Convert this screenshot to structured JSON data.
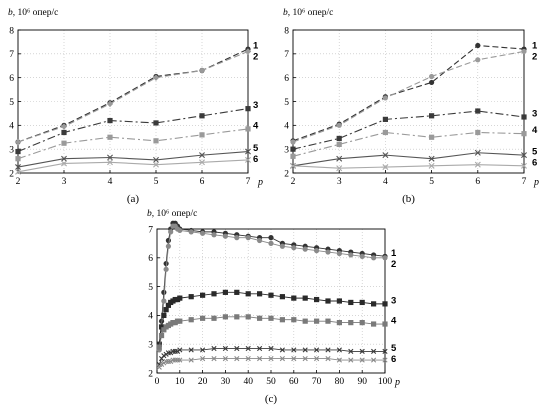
{
  "chart_data": [
    {
      "id": "a",
      "type": "line",
      "panel_label": "(a)",
      "ylabel_var": "b",
      "ylabel_unit": ", 10⁶ опер/с",
      "xlabel": "p",
      "x": [
        2,
        3,
        4,
        5,
        6,
        7
      ],
      "xlim": [
        2,
        7
      ],
      "ylim": [
        2,
        8
      ],
      "xticks": [
        2,
        3,
        4,
        5,
        6,
        7
      ],
      "yticks": [
        2,
        3,
        4,
        5,
        6,
        7,
        8
      ],
      "grid": true,
      "series": [
        {
          "label": "1",
          "values": [
            3.3,
            4.0,
            4.95,
            6.05,
            6.3,
            7.2
          ],
          "color": "#333333",
          "marker": "circle",
          "dash": "6,3"
        },
        {
          "label": "2",
          "values": [
            3.3,
            3.95,
            4.9,
            6.0,
            6.3,
            7.1
          ],
          "color": "#9a9a9a",
          "marker": "diamond",
          "dash": "6,3"
        },
        {
          "label": "3",
          "values": [
            2.9,
            3.7,
            4.2,
            4.1,
            4.4,
            4.7
          ],
          "color": "#3a3a3a",
          "marker": "square",
          "dash": "8,3,2,3"
        },
        {
          "label": "4",
          "values": [
            2.6,
            3.25,
            3.5,
            3.35,
            3.6,
            3.85
          ],
          "color": "#9a9a9a",
          "marker": "square",
          "dash": "8,3,2,3"
        },
        {
          "label": "5",
          "values": [
            2.25,
            2.6,
            2.65,
            2.55,
            2.75,
            2.9
          ],
          "color": "#555555",
          "marker": "x",
          "dash": ""
        },
        {
          "label": "6",
          "values": [
            2.05,
            2.4,
            2.45,
            2.35,
            2.45,
            2.55
          ],
          "color": "#aaaaaa",
          "marker": "x",
          "dash": ""
        }
      ]
    },
    {
      "id": "b",
      "type": "line",
      "panel_label": "(b)",
      "ylabel_var": "b",
      "ylabel_unit": ", 10⁶ опер/с",
      "xlabel": "p",
      "x": [
        2,
        3,
        4,
        5,
        6,
        7
      ],
      "xlim": [
        2,
        7
      ],
      "ylim": [
        2,
        8
      ],
      "xticks": [
        2,
        3,
        4,
        5,
        6,
        7
      ],
      "yticks": [
        2,
        3,
        4,
        5,
        6,
        7,
        8
      ],
      "grid": true,
      "series": [
        {
          "label": "1",
          "values": [
            3.35,
            4.05,
            5.2,
            5.8,
            7.35,
            7.2
          ],
          "color": "#333333",
          "marker": "circle",
          "dash": "6,3"
        },
        {
          "label": "2",
          "values": [
            3.3,
            4.0,
            5.15,
            6.05,
            6.75,
            7.1
          ],
          "color": "#9a9a9a",
          "marker": "circle",
          "dash": "6,3"
        },
        {
          "label": "3",
          "values": [
            3.0,
            3.45,
            4.25,
            4.4,
            4.6,
            4.35
          ],
          "color": "#3a3a3a",
          "marker": "square",
          "dash": "8,3,2,3"
        },
        {
          "label": "4",
          "values": [
            2.7,
            3.2,
            3.7,
            3.5,
            3.7,
            3.65
          ],
          "color": "#9a9a9a",
          "marker": "square",
          "dash": "8,3,2,3"
        },
        {
          "label": "5",
          "values": [
            2.3,
            2.6,
            2.75,
            2.6,
            2.85,
            2.75
          ],
          "color": "#555555",
          "marker": "x",
          "dash": ""
        },
        {
          "label": "6",
          "values": [
            2.3,
            2.2,
            2.25,
            2.3,
            2.35,
            2.3
          ],
          "color": "#aaaaaa",
          "marker": "x",
          "dash": ""
        }
      ]
    },
    {
      "id": "c",
      "type": "scatter",
      "panel_label": "(c)",
      "ylabel_var": "b",
      "ylabel_unit": ", 10⁶ опер/с",
      "xlabel": "p",
      "xlim": [
        0,
        100
      ],
      "ylim": [
        2,
        7
      ],
      "xticks": [
        0,
        10,
        20,
        30,
        40,
        50,
        60,
        70,
        80,
        90,
        100
      ],
      "yticks": [
        2,
        3,
        4,
        5,
        6,
        7
      ],
      "grid": true,
      "series": [
        {
          "label": "1",
          "color": "#333333",
          "marker": "circle",
          "x": [
            1,
            2,
            3,
            4,
            5,
            6,
            7,
            8,
            9,
            10,
            15,
            20,
            25,
            30,
            35,
            40,
            45,
            50,
            55,
            60,
            65,
            70,
            75,
            80,
            85,
            90,
            95,
            100
          ],
          "y": [
            3.0,
            3.8,
            4.8,
            5.8,
            6.6,
            7.0,
            7.2,
            7.2,
            7.1,
            7.0,
            6.95,
            6.9,
            6.9,
            6.85,
            6.8,
            6.75,
            6.7,
            6.7,
            6.5,
            6.45,
            6.4,
            6.35,
            6.3,
            6.25,
            6.2,
            6.15,
            6.1,
            6.05
          ]
        },
        {
          "label": "2",
          "color": "#8a8a8a",
          "marker": "circle",
          "x": [
            1,
            2,
            3,
            4,
            5,
            6,
            7,
            8,
            9,
            10,
            15,
            20,
            25,
            30,
            35,
            40,
            45,
            50,
            55,
            60,
            65,
            70,
            75,
            80,
            85,
            90,
            95,
            100
          ],
          "y": [
            2.8,
            3.6,
            4.5,
            5.6,
            6.4,
            6.9,
            7.1,
            7.1,
            7.0,
            6.95,
            6.9,
            6.85,
            6.8,
            6.75,
            6.7,
            6.7,
            6.6,
            6.5,
            6.4,
            6.35,
            6.3,
            6.25,
            6.2,
            6.15,
            6.1,
            6.05,
            6.0,
            6.0
          ]
        },
        {
          "label": "3",
          "color": "#2a2a2a",
          "marker": "square",
          "x": [
            1,
            2,
            3,
            4,
            5,
            6,
            7,
            8,
            9,
            10,
            15,
            20,
            25,
            30,
            35,
            40,
            45,
            50,
            55,
            60,
            65,
            70,
            75,
            80,
            85,
            90,
            95,
            100
          ],
          "y": [
            3.0,
            3.6,
            4.0,
            4.2,
            4.35,
            4.45,
            4.5,
            4.55,
            4.55,
            4.6,
            4.65,
            4.7,
            4.75,
            4.8,
            4.8,
            4.75,
            4.75,
            4.7,
            4.65,
            4.6,
            4.6,
            4.55,
            4.5,
            4.5,
            4.45,
            4.45,
            4.4,
            4.4
          ]
        },
        {
          "label": "4",
          "color": "#7a7a7a",
          "marker": "square",
          "x": [
            1,
            2,
            3,
            4,
            5,
            6,
            7,
            8,
            9,
            10,
            15,
            20,
            25,
            30,
            35,
            40,
            45,
            50,
            55,
            60,
            65,
            70,
            75,
            80,
            85,
            90,
            95,
            100
          ],
          "y": [
            2.9,
            3.3,
            3.5,
            3.6,
            3.65,
            3.7,
            3.75,
            3.75,
            3.8,
            3.8,
            3.85,
            3.9,
            3.9,
            3.95,
            3.95,
            3.95,
            3.9,
            3.9,
            3.85,
            3.85,
            3.8,
            3.8,
            3.8,
            3.75,
            3.75,
            3.75,
            3.7,
            3.7
          ]
        },
        {
          "label": "5",
          "color": "#3a3a3a",
          "marker": "x",
          "x": [
            1,
            2,
            3,
            4,
            5,
            6,
            7,
            8,
            9,
            10,
            15,
            20,
            25,
            30,
            35,
            40,
            45,
            50,
            55,
            60,
            65,
            70,
            75,
            80,
            85,
            90,
            95,
            100
          ],
          "y": [
            2.3,
            2.5,
            2.6,
            2.65,
            2.7,
            2.7,
            2.75,
            2.75,
            2.75,
            2.8,
            2.8,
            2.8,
            2.85,
            2.85,
            2.85,
            2.85,
            2.85,
            2.85,
            2.8,
            2.8,
            2.8,
            2.8,
            2.8,
            2.8,
            2.75,
            2.75,
            2.75,
            2.75
          ]
        },
        {
          "label": "6",
          "color": "#8a8a8a",
          "marker": "x",
          "x": [
            1,
            2,
            3,
            4,
            5,
            6,
            7,
            8,
            9,
            10,
            15,
            20,
            25,
            30,
            35,
            40,
            45,
            50,
            55,
            60,
            65,
            70,
            75,
            80,
            85,
            90,
            95,
            100
          ],
          "y": [
            2.2,
            2.3,
            2.35,
            2.4,
            2.4,
            2.4,
            2.45,
            2.45,
            2.45,
            2.45,
            2.45,
            2.5,
            2.5,
            2.5,
            2.5,
            2.5,
            2.5,
            2.5,
            2.5,
            2.5,
            2.5,
            2.5,
            2.5,
            2.45,
            2.45,
            2.45,
            2.45,
            2.45
          ]
        }
      ]
    }
  ]
}
